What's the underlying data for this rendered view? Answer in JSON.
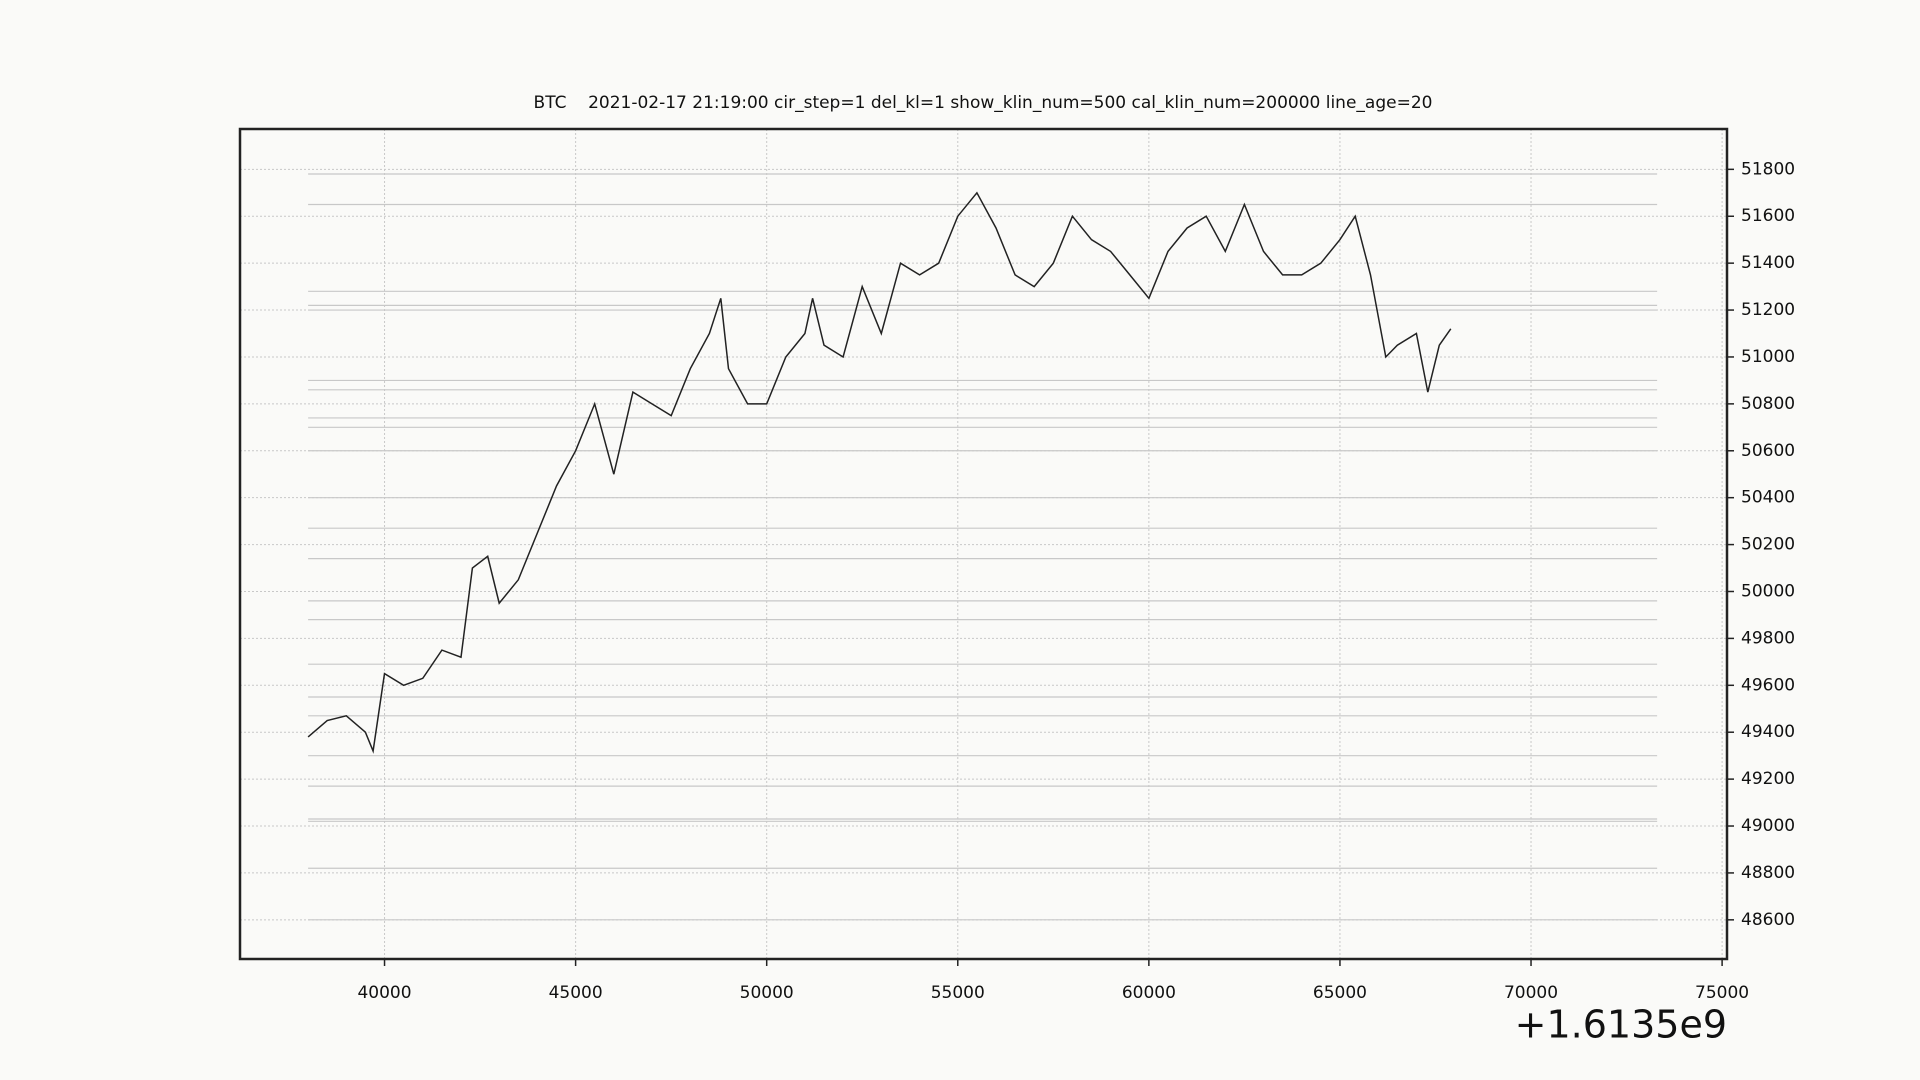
{
  "chart_data": {
    "type": "line",
    "title": "BTC    2021-02-17 21:19:00 cir_step=1 del_kl=1 show_klin_num=500 cal_klin_num=200000 line_age=20",
    "x_offset_label": "+1.6135e9",
    "x": [
      38000,
      38500,
      39000,
      39500,
      39700,
      40000,
      40500,
      41000,
      41500,
      42000,
      42300,
      42700,
      43000,
      43500,
      44000,
      44500,
      45000,
      45500,
      46000,
      46500,
      47000,
      47500,
      48000,
      48500,
      48800,
      49000,
      49500,
      50000,
      50500,
      51000,
      51200,
      51500,
      52000,
      52500,
      53000,
      53500,
      54000,
      54500,
      55000,
      55500,
      56000,
      56500,
      57000,
      57500,
      58000,
      58500,
      59000,
      59500,
      60000,
      60500,
      61000,
      61500,
      62000,
      62500,
      63000,
      63500,
      64000,
      64500,
      65000,
      65400,
      65800,
      66200,
      66500,
      67000,
      67300,
      67600,
      67900
    ],
    "series": [
      {
        "name": "BTC",
        "color": "#222222",
        "values": [
          49380,
          49450,
          49470,
          49400,
          49320,
          49650,
          49600,
          49630,
          49750,
          49720,
          50100,
          50150,
          49950,
          50050,
          50250,
          50450,
          50600,
          50800,
          50500,
          50850,
          50800,
          50750,
          50950,
          51100,
          51250,
          50950,
          50800,
          50800,
          51000,
          51100,
          51250,
          51050,
          51000,
          51300,
          51100,
          51400,
          51350,
          51400,
          51600,
          51700,
          51550,
          51350,
          51300,
          51400,
          51600,
          51500,
          51450,
          51350,
          51250,
          51450,
          51550,
          51600,
          51450,
          51650,
          51450,
          51350,
          51350,
          51400,
          51500,
          51600,
          51350,
          51000,
          51050,
          51100,
          50850,
          51050,
          51120
        ]
      }
    ],
    "levels": [
      51780,
      51650,
      51280,
      51220,
      51200,
      50900,
      50860,
      50740,
      50700,
      50600,
      50400,
      50270,
      50140,
      49960,
      49880,
      49690,
      49550,
      49470,
      49300,
      49170,
      49030,
      49020,
      48820,
      48600
    ],
    "levels_xlim": [
      38000,
      73300
    ],
    "levels_color": "#c8c8c8",
    "xlim": [
      36218,
      75128
    ],
    "ylim": [
      48433,
      51972
    ],
    "xticks": [
      40000,
      45000,
      50000,
      55000,
      60000,
      65000,
      70000,
      75000
    ],
    "yticks": [
      48600,
      48800,
      49000,
      49200,
      49400,
      49600,
      49800,
      50000,
      50200,
      50400,
      50600,
      50800,
      51000,
      51200,
      51400,
      51600,
      51800
    ],
    "grid": true
  }
}
